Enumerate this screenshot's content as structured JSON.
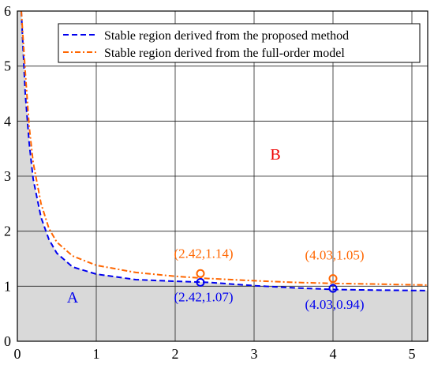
{
  "chart_data": {
    "type": "line",
    "xlim": [
      0,
      5.2
    ],
    "ylim": [
      0,
      6
    ],
    "x_ticks": [
      "0",
      "1",
      "2",
      "3",
      "4",
      "5"
    ],
    "y_ticks": [
      "0",
      "1",
      "2",
      "3",
      "4",
      "5",
      "6"
    ],
    "grid": true,
    "legend_position": "top-right",
    "series": [
      {
        "name": "Stable region derived from the proposed method",
        "color": "#0000ee",
        "style": "dashed",
        "x": [
          0.05,
          0.1,
          0.15,
          0.2,
          0.3,
          0.4,
          0.5,
          0.7,
          1.0,
          1.5,
          2.0,
          2.42,
          3.0,
          3.5,
          4.03,
          4.5,
          5.2
        ],
        "y": [
          6.0,
          4.5,
          3.6,
          2.95,
          2.25,
          1.85,
          1.6,
          1.35,
          1.22,
          1.12,
          1.09,
          1.07,
          1.01,
          0.97,
          0.94,
          0.93,
          0.92
        ]
      },
      {
        "name": "Stable region derived from the full-order model",
        "color": "#ff6600",
        "style": "dashdot",
        "x": [
          0.05,
          0.1,
          0.15,
          0.2,
          0.3,
          0.4,
          0.5,
          0.7,
          1.0,
          1.5,
          2.0,
          2.42,
          3.0,
          3.5,
          4.03,
          4.5,
          5.2
        ],
        "y": [
          6.0,
          4.9,
          3.9,
          3.25,
          2.5,
          2.05,
          1.8,
          1.55,
          1.38,
          1.25,
          1.18,
          1.14,
          1.1,
          1.07,
          1.05,
          1.04,
          1.02
        ]
      }
    ],
    "markers": [
      {
        "x": 2.32,
        "y": 1.07,
        "label": "(2.42,1.07)",
        "color": "#0000ee"
      },
      {
        "x": 2.32,
        "y": 1.23,
        "label": "(2.42,1.14)",
        "color": "#ff6600"
      },
      {
        "x": 4.0,
        "y": 0.96,
        "label": "(4.03,0.94)",
        "color": "#0000ee"
      },
      {
        "x": 4.0,
        "y": 1.14,
        "label": "(4.03,1.05)",
        "color": "#ff6600"
      }
    ],
    "regions": [
      {
        "label": "A",
        "color": "#0000ee"
      },
      {
        "label": "B",
        "color": "#ee0000"
      }
    ],
    "fill_color": "#d9d9d9"
  }
}
